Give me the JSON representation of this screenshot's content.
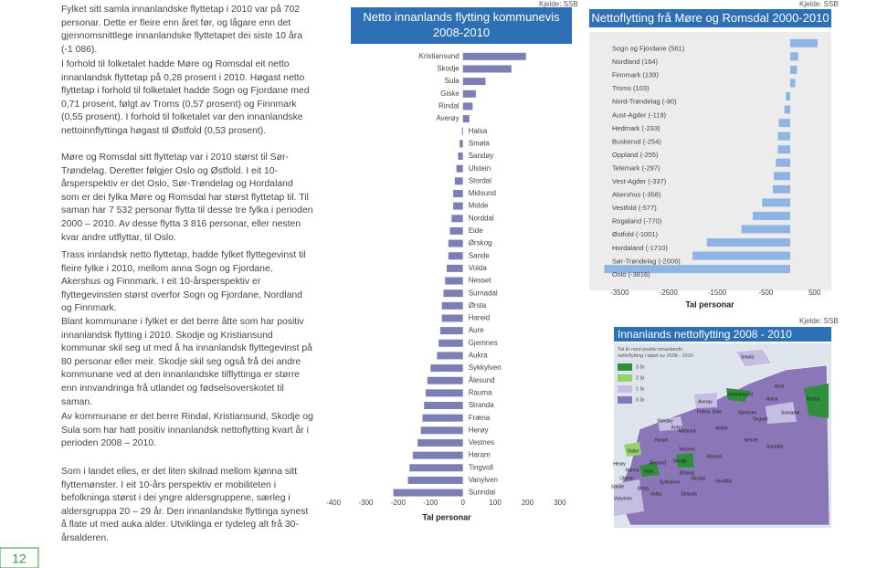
{
  "text": {
    "paragraphs": [
      "Fylket sitt samla innanlandske flyttetap i 2010 var på 702 personar. Dette er fleire enn året før, og lågare enn det gjennomsnittlege innanlandske flyttetapet dei siste 10 åra (-1 086).",
      "I forhold til folketalet hadde Møre og Romsdal eit netto innanlandsk flyttetap på 0,28 prosent i 2010. Høgast netto flyttetap i forhold til folketalet hadde Sogn og Fjordane med 0,71 prosent, følgt av Troms (0,57 prosent) og Finnmark (0,55 prosent). I forhold til folketalet var den innanlandske nettoinnflyttinga høgast til Østfold (0,53 prosent).",
      "Møre og Romsdal sitt flyttetap var i 2010 størst til Sør-Trøndelag. Deretter følgjer Oslo og Østfold. I eit 10-årsperspektiv er det Oslo, Sør-Trøndelag og Hordaland som er dei fylka Møre og Romsdal har størst flyttetap til. Til saman har 7 532 personar flytta til desse tre fylka i perioden 2000 – 2010. Av desse flytta 3 816 personar, eller nesten kvar andre utflyttar, til Oslo.",
      "Trass innlandsk netto flyttetap, hadde fylket flyttegevinst til fleire fylke i 2010, mellom anna Sogn og Fjordane, Akershus og Finnmark. I eit 10-årsperspektiv er flyttegevinsten størst overfor Sogn og Fjordane, Nordland og Finnmark.",
      "Blant kommunane i fylket er det berre åtte som har positiv innanlandsk flytting i 2010. Skodje og Kristiansund kommunar skil seg ut med å ha innanlandsk flyttegevinst på 80 personar eller meir. Skodje skil seg også frå dei andre kommunane ved at den innanlandske tilflyttinga er større enn innvandringa frå utlandet og fødselsoverskotet til saman.",
      "Av kommunane er det berre Rindal, Kristiansund, Skodje og Sula som har hatt positiv innanlandsk nettoflytting kvart år i perioden 2008 – 2010.",
      "Som i landet elles, er det liten skilnad mellom kjønna sitt flyttemønster. I eit 10-års perspektiv er mobiliteten i befolkninga størst i dei yngre aldersgruppene, særleg i aldersgruppa 20 – 29 år. Den innanlandske flyttinga synest å flate ut med auka alder. Utviklinga er tydeleg alt frå 30-årsalderen."
    ]
  },
  "page_number": "12",
  "chart_data": [
    {
      "type": "bar",
      "orientation": "horizontal",
      "title": "Netto innanlands flytting kommunevis 2008-2010",
      "source": "Kjelde: SSB",
      "xlabel": "Tal personar",
      "categories": [
        "Kristiansund",
        "Skodje",
        "Sula",
        "Giske",
        "Rindal",
        "Averøy",
        "Halsa",
        "Smøla",
        "Sandøy",
        "Ulstein",
        "Stordal",
        "Midsund",
        "Molde",
        "Norddal",
        "Eide",
        "Ørskog",
        "Sande",
        "Volda",
        "Nesset",
        "Surnadal",
        "Ørsta",
        "Hareid",
        "Aure",
        "Gjemnes",
        "Aukra",
        "Sykkylven",
        "Ålesund",
        "Rauma",
        "Stranda",
        "Fræna",
        "Herøy",
        "Vestnes",
        "Haram",
        "Tingvoll",
        "Vanylven",
        "Sunndal"
      ],
      "values": [
        195,
        150,
        70,
        40,
        30,
        20,
        -3,
        -10,
        -15,
        -20,
        -25,
        -30,
        -30,
        -35,
        -40,
        -45,
        -45,
        -50,
        -55,
        -60,
        -65,
        -65,
        -70,
        -75,
        -80,
        -100,
        -110,
        -115,
        -120,
        -125,
        -130,
        -140,
        -155,
        -165,
        -170,
        -215
      ],
      "color": "#7b7fb3",
      "xlim": [
        -420,
        320
      ],
      "xticks": [
        -400,
        -300,
        -200,
        -100,
        0,
        100,
        200,
        300
      ]
    },
    {
      "type": "bar",
      "orientation": "horizontal",
      "title": "Nettoflytting frå Møre og Romsdal 2000-2010",
      "source": "Kjelde: SSB",
      "xlabel": "Tal personar",
      "categories": [
        "Sogn og Fjordane (561)",
        "Nordland (164)",
        "Finnmark (139)",
        "Troms (103)",
        "Nord-Trøndelag (-90)",
        "Aust-Agder (-119)",
        "Hedmark (-233)",
        "Buskerud (-254)",
        "Oppland (-255)",
        "Telemark (-297)",
        "Vest-Agder (-337)",
        "Akershus (-358)",
        "Vestfold (-577)",
        "Rogaland (-770)",
        "Østfold (-1001)",
        "Hordaland (-1710)",
        "Sør-Trøndelag (-2006)",
        "Oslo (-3816)"
      ],
      "values": [
        561,
        164,
        139,
        103,
        -90,
        -119,
        -233,
        -254,
        -255,
        -297,
        -337,
        -358,
        -577,
        -770,
        -1001,
        -1710,
        -2006,
        -3816
      ],
      "color": "#8fb4e3",
      "xlim": [
        -3900,
        600
      ],
      "xticks": [
        -3500,
        -2500,
        -1500,
        -500,
        500
      ]
    }
  ],
  "map": {
    "title": "Innanlands nettoflytting 2008 - 2010",
    "source": "Kjelde: SSB",
    "legend_title": "Tal år med positiv innanlands nettoflytting i løpet av 2008 - 2010",
    "legend": [
      {
        "label": "3 år",
        "color": "#2f8f3c"
      },
      {
        "label": "2 år",
        "color": "#93d36e"
      },
      {
        "label": "1 år",
        "color": "#c6bde2"
      },
      {
        "label": "0 år",
        "color": "#8b76b8"
      }
    ],
    "labels": [
      "Smøla",
      "Aure",
      "Halsa",
      "Averøy",
      "Kristiansund",
      "Rindal",
      "Fræna",
      "Eide",
      "Gjemnes",
      "Tingvoll",
      "Surnadal",
      "Sandøy",
      "Aukra",
      "Molde",
      "Nesset",
      "Sunndal",
      "Giske",
      "Haram",
      "Midsund",
      "Ålesund",
      "Vestnes",
      "Sula",
      "Rauma",
      "Skodje",
      "Hareid",
      "Herøy",
      "Ulstein",
      "Ørskog",
      "Sykkylven",
      "Stordal",
      "Norddal",
      "Sande",
      "Volda",
      "Ørsta",
      "Stranda",
      "Vanylven"
    ]
  }
}
